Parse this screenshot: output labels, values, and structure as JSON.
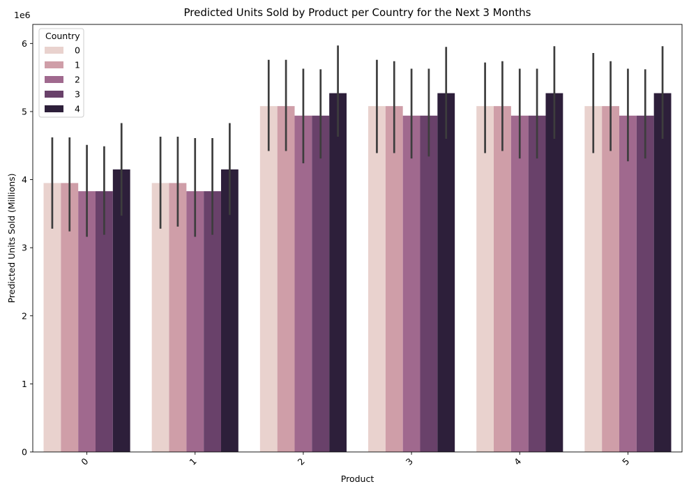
{
  "chart_data": {
    "type": "bar",
    "title": "Predicted Units Sold by Product per Country for the Next 3 Months",
    "xlabel": "Product",
    "ylabel": "Predicted Units Sold (Millions)",
    "y_offset_label": "1e6",
    "categories": [
      "0",
      "1",
      "2",
      "3",
      "4",
      "5"
    ],
    "ylim": [
      0,
      6280000
    ],
    "yticks": [
      0,
      1000000,
      2000000,
      3000000,
      4000000,
      5000000,
      6000000
    ],
    "ytick_labels": [
      "0",
      "1",
      "2",
      "3",
      "4",
      "5",
      "6"
    ],
    "grid": false,
    "legend": {
      "title": "Country",
      "placement": "top-left"
    },
    "series": [
      {
        "name": "0",
        "color": "#e9d2ce",
        "values": [
          3950000,
          3950000,
          5080000,
          5080000,
          5080000,
          5080000
        ],
        "err_low": [
          3280000,
          3280000,
          4420000,
          4390000,
          4390000,
          4390000
        ],
        "err_high": [
          4620000,
          4630000,
          5760000,
          5760000,
          5720000,
          5860000
        ]
      },
      {
        "name": "1",
        "color": "#cf9ea8",
        "values": [
          3950000,
          3950000,
          5080000,
          5080000,
          5080000,
          5080000
        ],
        "err_low": [
          3240000,
          3310000,
          4420000,
          4390000,
          4420000,
          4420000
        ],
        "err_high": [
          4620000,
          4630000,
          5760000,
          5740000,
          5740000,
          5740000
        ]
      },
      {
        "name": "2",
        "color": "#a0698e",
        "values": [
          3830000,
          3830000,
          4940000,
          4940000,
          4940000,
          4940000
        ],
        "err_low": [
          3160000,
          3160000,
          4240000,
          4310000,
          4310000,
          4270000
        ],
        "err_high": [
          4510000,
          4610000,
          5630000,
          5630000,
          5630000,
          5630000
        ]
      },
      {
        "name": "3",
        "color": "#69416a",
        "values": [
          3830000,
          3830000,
          4940000,
          4940000,
          4940000,
          4940000
        ],
        "err_low": [
          3190000,
          3190000,
          4310000,
          4340000,
          4310000,
          4310000
        ],
        "err_high": [
          4490000,
          4610000,
          5620000,
          5630000,
          5630000,
          5620000
        ]
      },
      {
        "name": "4",
        "color": "#2d1f3a",
        "values": [
          4150000,
          4150000,
          5270000,
          5270000,
          5270000,
          5270000
        ],
        "err_low": [
          3470000,
          3480000,
          4630000,
          4600000,
          4600000,
          4600000
        ],
        "err_high": [
          4830000,
          4830000,
          5970000,
          5950000,
          5960000,
          5960000
        ]
      }
    ]
  }
}
